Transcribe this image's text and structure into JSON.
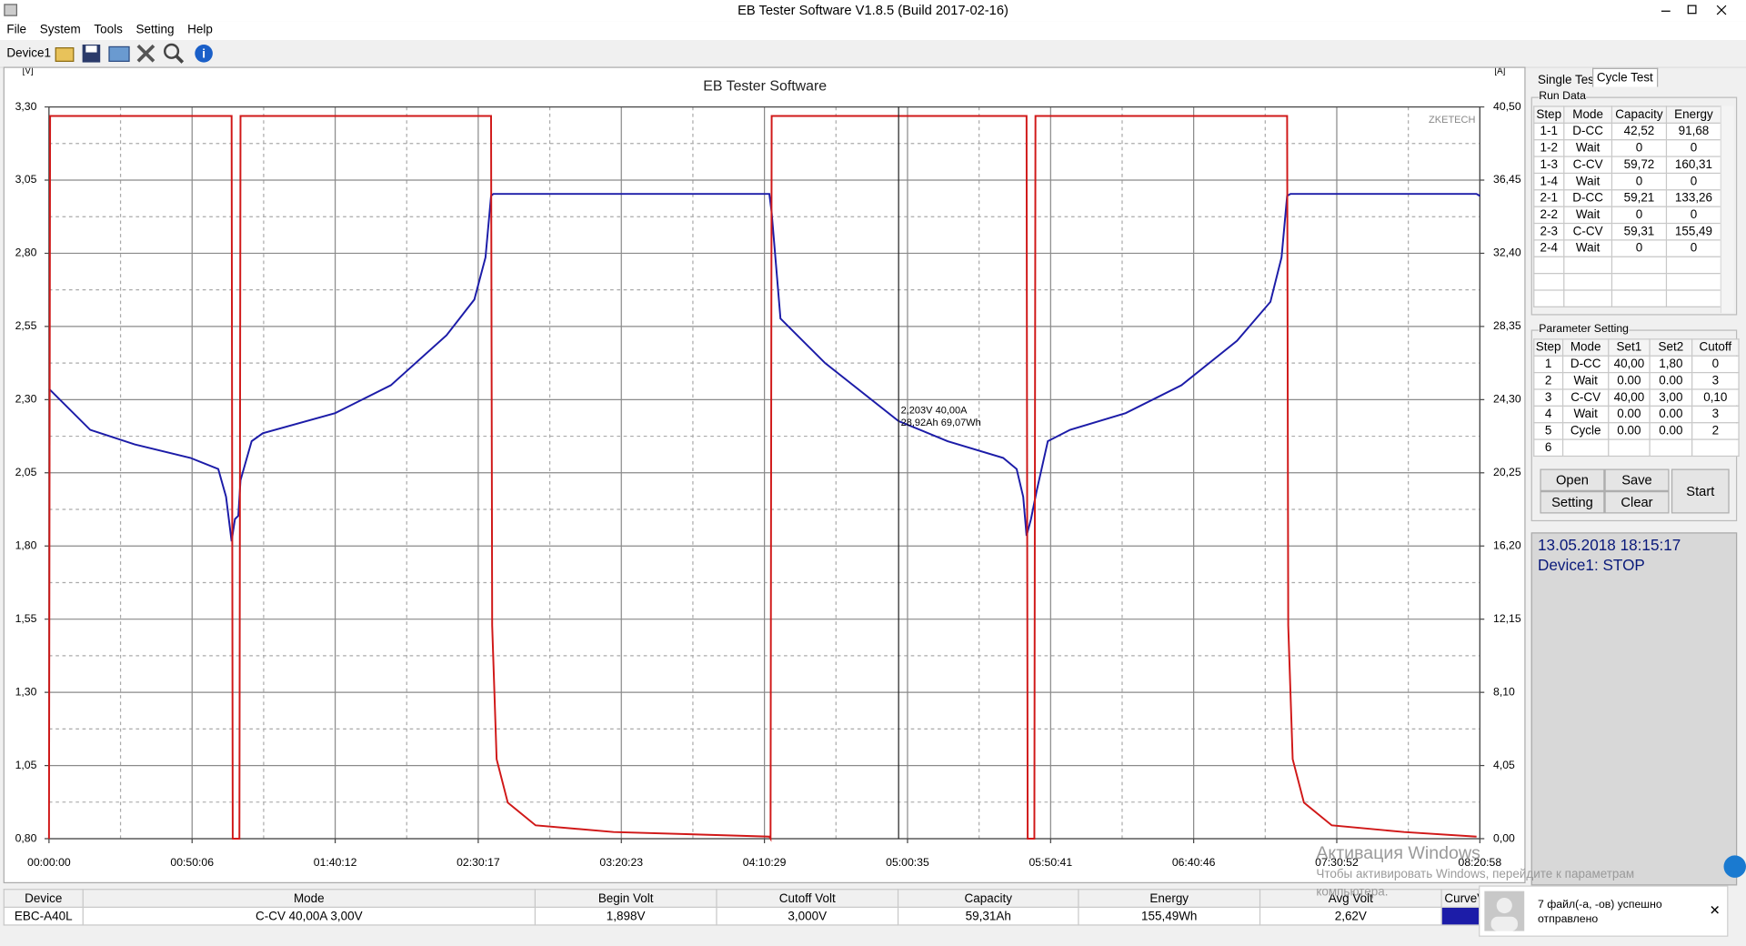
{
  "window": {
    "title": "EB Tester Software V1.8.5 (Build 2017-02-16)"
  },
  "menu": [
    "File",
    "System",
    "Tools",
    "Setting",
    "Help"
  ],
  "toolbar": {
    "device": "Device1"
  },
  "chart_data": {
    "type": "line",
    "title": "EB Tester Software",
    "watermark": "ZKETECH",
    "y_label": "[V]",
    "y2_label": "[A]",
    "annotations": [
      "2,203V  40,00A",
      "28,92Ah 69,07Wh"
    ],
    "grid": true,
    "xlim": [
      0,
      30058
    ],
    "xticks": [
      {
        "value": 0,
        "label": "00:00:00"
      },
      {
        "value": 3006,
        "label": "00:50:06"
      },
      {
        "value": 6012,
        "label": "01:40:12"
      },
      {
        "value": 9017,
        "label": "02:30:17"
      },
      {
        "value": 12023,
        "label": "03:20:23"
      },
      {
        "value": 15029,
        "label": "04:10:29"
      },
      {
        "value": 18035,
        "label": "05:00:35"
      },
      {
        "value": 21041,
        "label": "05:50:41"
      },
      {
        "value": 24046,
        "label": "06:40:46"
      },
      {
        "value": 27052,
        "label": "07:30:52"
      },
      {
        "value": 30058,
        "label": "08:20:58"
      }
    ],
    "ylim": [
      0.8,
      3.3
    ],
    "yticks": [
      {
        "value": 0.8,
        "label": "0,80"
      },
      {
        "value": 1.05,
        "label": "1,05"
      },
      {
        "value": 1.3,
        "label": "1,30"
      },
      {
        "value": 1.55,
        "label": "1,55"
      },
      {
        "value": 1.8,
        "label": "1,80"
      },
      {
        "value": 2.05,
        "label": "2,05"
      },
      {
        "value": 2.3,
        "label": "2,30"
      },
      {
        "value": 2.55,
        "label": "2,55"
      },
      {
        "value": 2.8,
        "label": "2,80"
      },
      {
        "value": 3.05,
        "label": "3,05"
      },
      {
        "value": 3.3,
        "label": "3,30"
      }
    ],
    "y2lim": [
      0,
      40.5
    ],
    "y2ticks": [
      {
        "value": 0,
        "label": "0,00"
      },
      {
        "value": 4.05,
        "label": "4,05"
      },
      {
        "value": 8.1,
        "label": "8,10"
      },
      {
        "value": 12.15,
        "label": "12,15"
      },
      {
        "value": 16.2,
        "label": "16,20"
      },
      {
        "value": 20.25,
        "label": "20,25"
      },
      {
        "value": 24.3,
        "label": "24,30"
      },
      {
        "value": 28.35,
        "label": "28,35"
      },
      {
        "value": 32.4,
        "label": "32,40"
      },
      {
        "value": 36.45,
        "label": "36,45"
      },
      {
        "value": 40.5,
        "label": "40,50"
      }
    ],
    "series": [
      {
        "color": "#1c1ca8",
        "axis": "y",
        "x": [
          0,
          865,
          1801,
          2971,
          3555,
          3719,
          3836,
          3906,
          3976,
          4023,
          4257,
          4491,
          6011,
          7181,
          8350,
          8935,
          9169,
          9286,
          9333,
          15133,
          15180,
          15367,
          16303,
          17846,
          18876,
          20045,
          20326,
          20466,
          20536,
          20629,
          20747,
          20981,
          21449,
          22618,
          23788,
          24957,
          25659,
          25893,
          26010,
          26080,
          29987,
          30058
        ],
        "values": [
          2.337,
          2.197,
          2.147,
          2.101,
          2.063,
          1.968,
          1.816,
          1.892,
          1.903,
          2.025,
          2.158,
          2.185,
          2.254,
          2.349,
          2.52,
          2.642,
          2.786,
          2.996,
          3.003,
          3.003,
          2.939,
          2.577,
          2.425,
          2.227,
          2.158,
          2.101,
          2.063,
          1.968,
          1.835,
          1.892,
          1.987,
          2.158,
          2.197,
          2.254,
          2.349,
          2.501,
          2.634,
          2.786,
          2.996,
          3.003,
          3.003,
          2.996
        ]
      },
      {
        "color": "#d01818",
        "axis": "y2",
        "x": [
          0,
          23,
          3836,
          3859,
          4000,
          4023,
          9286,
          9309,
          9403,
          9637,
          10222,
          11859,
          15133,
          15157,
          15180,
          20536,
          20559,
          20700,
          20723,
          26010,
          26033,
          26127,
          26361,
          26946,
          28466,
          29987
        ],
        "values": [
          0,
          40,
          40,
          0,
          0,
          40,
          40,
          11.8,
          4.4,
          2.0,
          0.74,
          0.37,
          0.12,
          0,
          40,
          40,
          0,
          0,
          40,
          40,
          11.8,
          4.4,
          2.0,
          0.74,
          0.37,
          0.12
        ]
      }
    ]
  },
  "tabs": [
    "Single Test",
    "Cycle Test"
  ],
  "run_data": {
    "title": "Run Data",
    "columns": [
      "Step",
      "Mode",
      "Capacity",
      "Energy"
    ],
    "rows": [
      [
        "1-1",
        "D-CC",
        "42,52",
        "91,68"
      ],
      [
        "1-2",
        "Wait",
        "0",
        "0"
      ],
      [
        "1-3",
        "C-CV",
        "59,72",
        "160,31"
      ],
      [
        "1-4",
        "Wait",
        "0",
        "0"
      ],
      [
        "2-1",
        "D-CC",
        "59,21",
        "133,26"
      ],
      [
        "2-2",
        "Wait",
        "0",
        "0"
      ],
      [
        "2-3",
        "C-CV",
        "59,31",
        "155,49"
      ],
      [
        "2-4",
        "Wait",
        "0",
        "0"
      ]
    ]
  },
  "parameter_setting": {
    "title": "Parameter Setting",
    "columns": [
      "Step",
      "Mode",
      "Set1",
      "Set2",
      "Cutoff"
    ],
    "rows": [
      [
        "1",
        "D-CC",
        "40,00",
        "1,80",
        "0"
      ],
      [
        "2",
        "Wait",
        "0.00",
        "0.00",
        "3"
      ],
      [
        "3",
        "C-CV",
        "40,00",
        "3,00",
        "0,10"
      ],
      [
        "4",
        "Wait",
        "0.00",
        "0.00",
        "3"
      ],
      [
        "5",
        "Cycle",
        "0.00",
        "0.00",
        "2"
      ],
      [
        "6"
      ]
    ]
  },
  "buttons": {
    "open": "Open",
    "save": "Save",
    "start": "Start",
    "setting": "Setting",
    "clear": "Clear"
  },
  "status": {
    "datetime": "13.05.2018 18:15:17",
    "device": "Device1: STOP"
  },
  "summary": {
    "columns": [
      "Device",
      "Mode",
      "Begin Volt",
      "Cutoff Volt",
      "Capacity",
      "Energy",
      "Avg Volt",
      "CurveV"
    ],
    "row": [
      "EBC-A40L",
      "C-CV  40,00A  3,00V",
      "1,898V",
      "3,000V",
      "59,31Ah",
      "155,49Wh",
      "2,62V"
    ]
  },
  "activation": {
    "title": "Активация Windows",
    "text": "Чтобы активировать Windows, перейдите к параметрам",
    "text2": "компьютера."
  },
  "notification": {
    "text": "7 файл(-а, -ов) успешно отправлено"
  }
}
